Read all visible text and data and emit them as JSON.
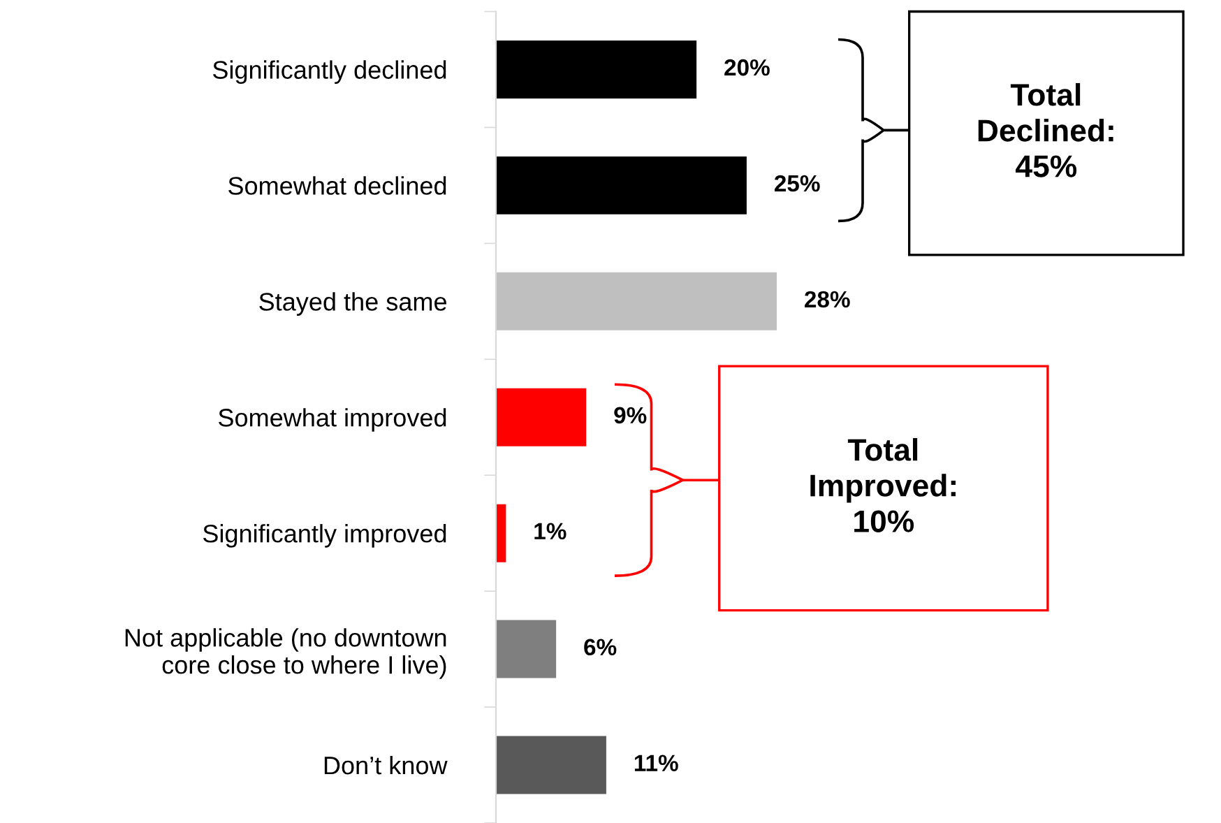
{
  "chart_data": {
    "type": "bar",
    "orientation": "horizontal",
    "categories": [
      "Significantly declined",
      "Somewhat declined",
      "Stayed the same",
      "Somewhat improved",
      "Significantly improved",
      "Not applicable (no downtown\ncore close to where I live)",
      "Don’t know"
    ],
    "values": [
      20,
      25,
      28,
      9,
      1,
      6,
      11
    ],
    "colors": [
      "#000000",
      "#000000",
      "#bfbfbf",
      "#ff0000",
      "#ff0000",
      "#7f7f7f",
      "#595959"
    ],
    "value_labels": [
      "20%",
      "25%",
      "28%",
      "9%",
      "1%",
      "6%",
      "11%"
    ],
    "tick_labels": "y",
    "grid": false,
    "legend": false,
    "annotations": [
      "Total\nDeclined:\n45%",
      "Total\nImproved:\n10%"
    ]
  }
}
